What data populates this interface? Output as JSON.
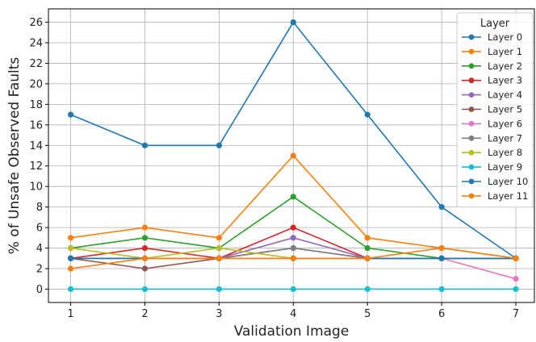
{
  "chart_data": {
    "type": "line",
    "title": "",
    "xlabel": "Validation Image",
    "ylabel": "% of Unsafe Observed Faults",
    "x": [
      1,
      2,
      3,
      4,
      5,
      6,
      7
    ],
    "xlim": [
      0.7,
      7.25
    ],
    "ylim": [
      -1.3,
      27.3
    ],
    "yticks": [
      0,
      2,
      4,
      6,
      8,
      10,
      12,
      14,
      16,
      18,
      20,
      22,
      24,
      26
    ],
    "grid": true,
    "legend": {
      "title": "Layer",
      "position": "top-right"
    },
    "series": [
      {
        "name": "Layer 0",
        "color": "#1f77b4",
        "values": [
          17,
          14,
          14,
          26,
          17,
          8,
          3
        ]
      },
      {
        "name": "Layer 1",
        "color": "#ff7f0e",
        "values": [
          5,
          6,
          5,
          13,
          5,
          4,
          3
        ]
      },
      {
        "name": "Layer 2",
        "color": "#2ca02c",
        "values": [
          4,
          5,
          4,
          9,
          4,
          3,
          3
        ]
      },
      {
        "name": "Layer 3",
        "color": "#d62728",
        "values": [
          3,
          4,
          3,
          6,
          3,
          3,
          3
        ]
      },
      {
        "name": "Layer 4",
        "color": "#9467bd",
        "values": [
          3,
          3,
          3,
          5,
          3,
          3,
          3
        ]
      },
      {
        "name": "Layer 5",
        "color": "#8c564b",
        "values": [
          3,
          2,
          3,
          4,
          3,
          3,
          3
        ]
      },
      {
        "name": "Layer 6",
        "color": "#e377c2",
        "values": [
          3,
          3,
          3,
          3,
          3,
          3,
          1
        ]
      },
      {
        "name": "Layer 7",
        "color": "#7f7f7f",
        "values": [
          3,
          3,
          3,
          4,
          3,
          3,
          3
        ]
      },
      {
        "name": "Layer 8",
        "color": "#bcbd22",
        "values": [
          4,
          3,
          4,
          3,
          3,
          3,
          3
        ]
      },
      {
        "name": "Layer 9",
        "color": "#17becf",
        "values": [
          0,
          0,
          0,
          0,
          0,
          0,
          0
        ]
      },
      {
        "name": "Layer 10",
        "color": "#1f77b4",
        "values": [
          3,
          3,
          3,
          3,
          3,
          3,
          3
        ]
      },
      {
        "name": "Layer 11",
        "color": "#ff7f0e",
        "values": [
          2,
          3,
          3,
          3,
          3,
          4,
          3
        ]
      }
    ]
  }
}
